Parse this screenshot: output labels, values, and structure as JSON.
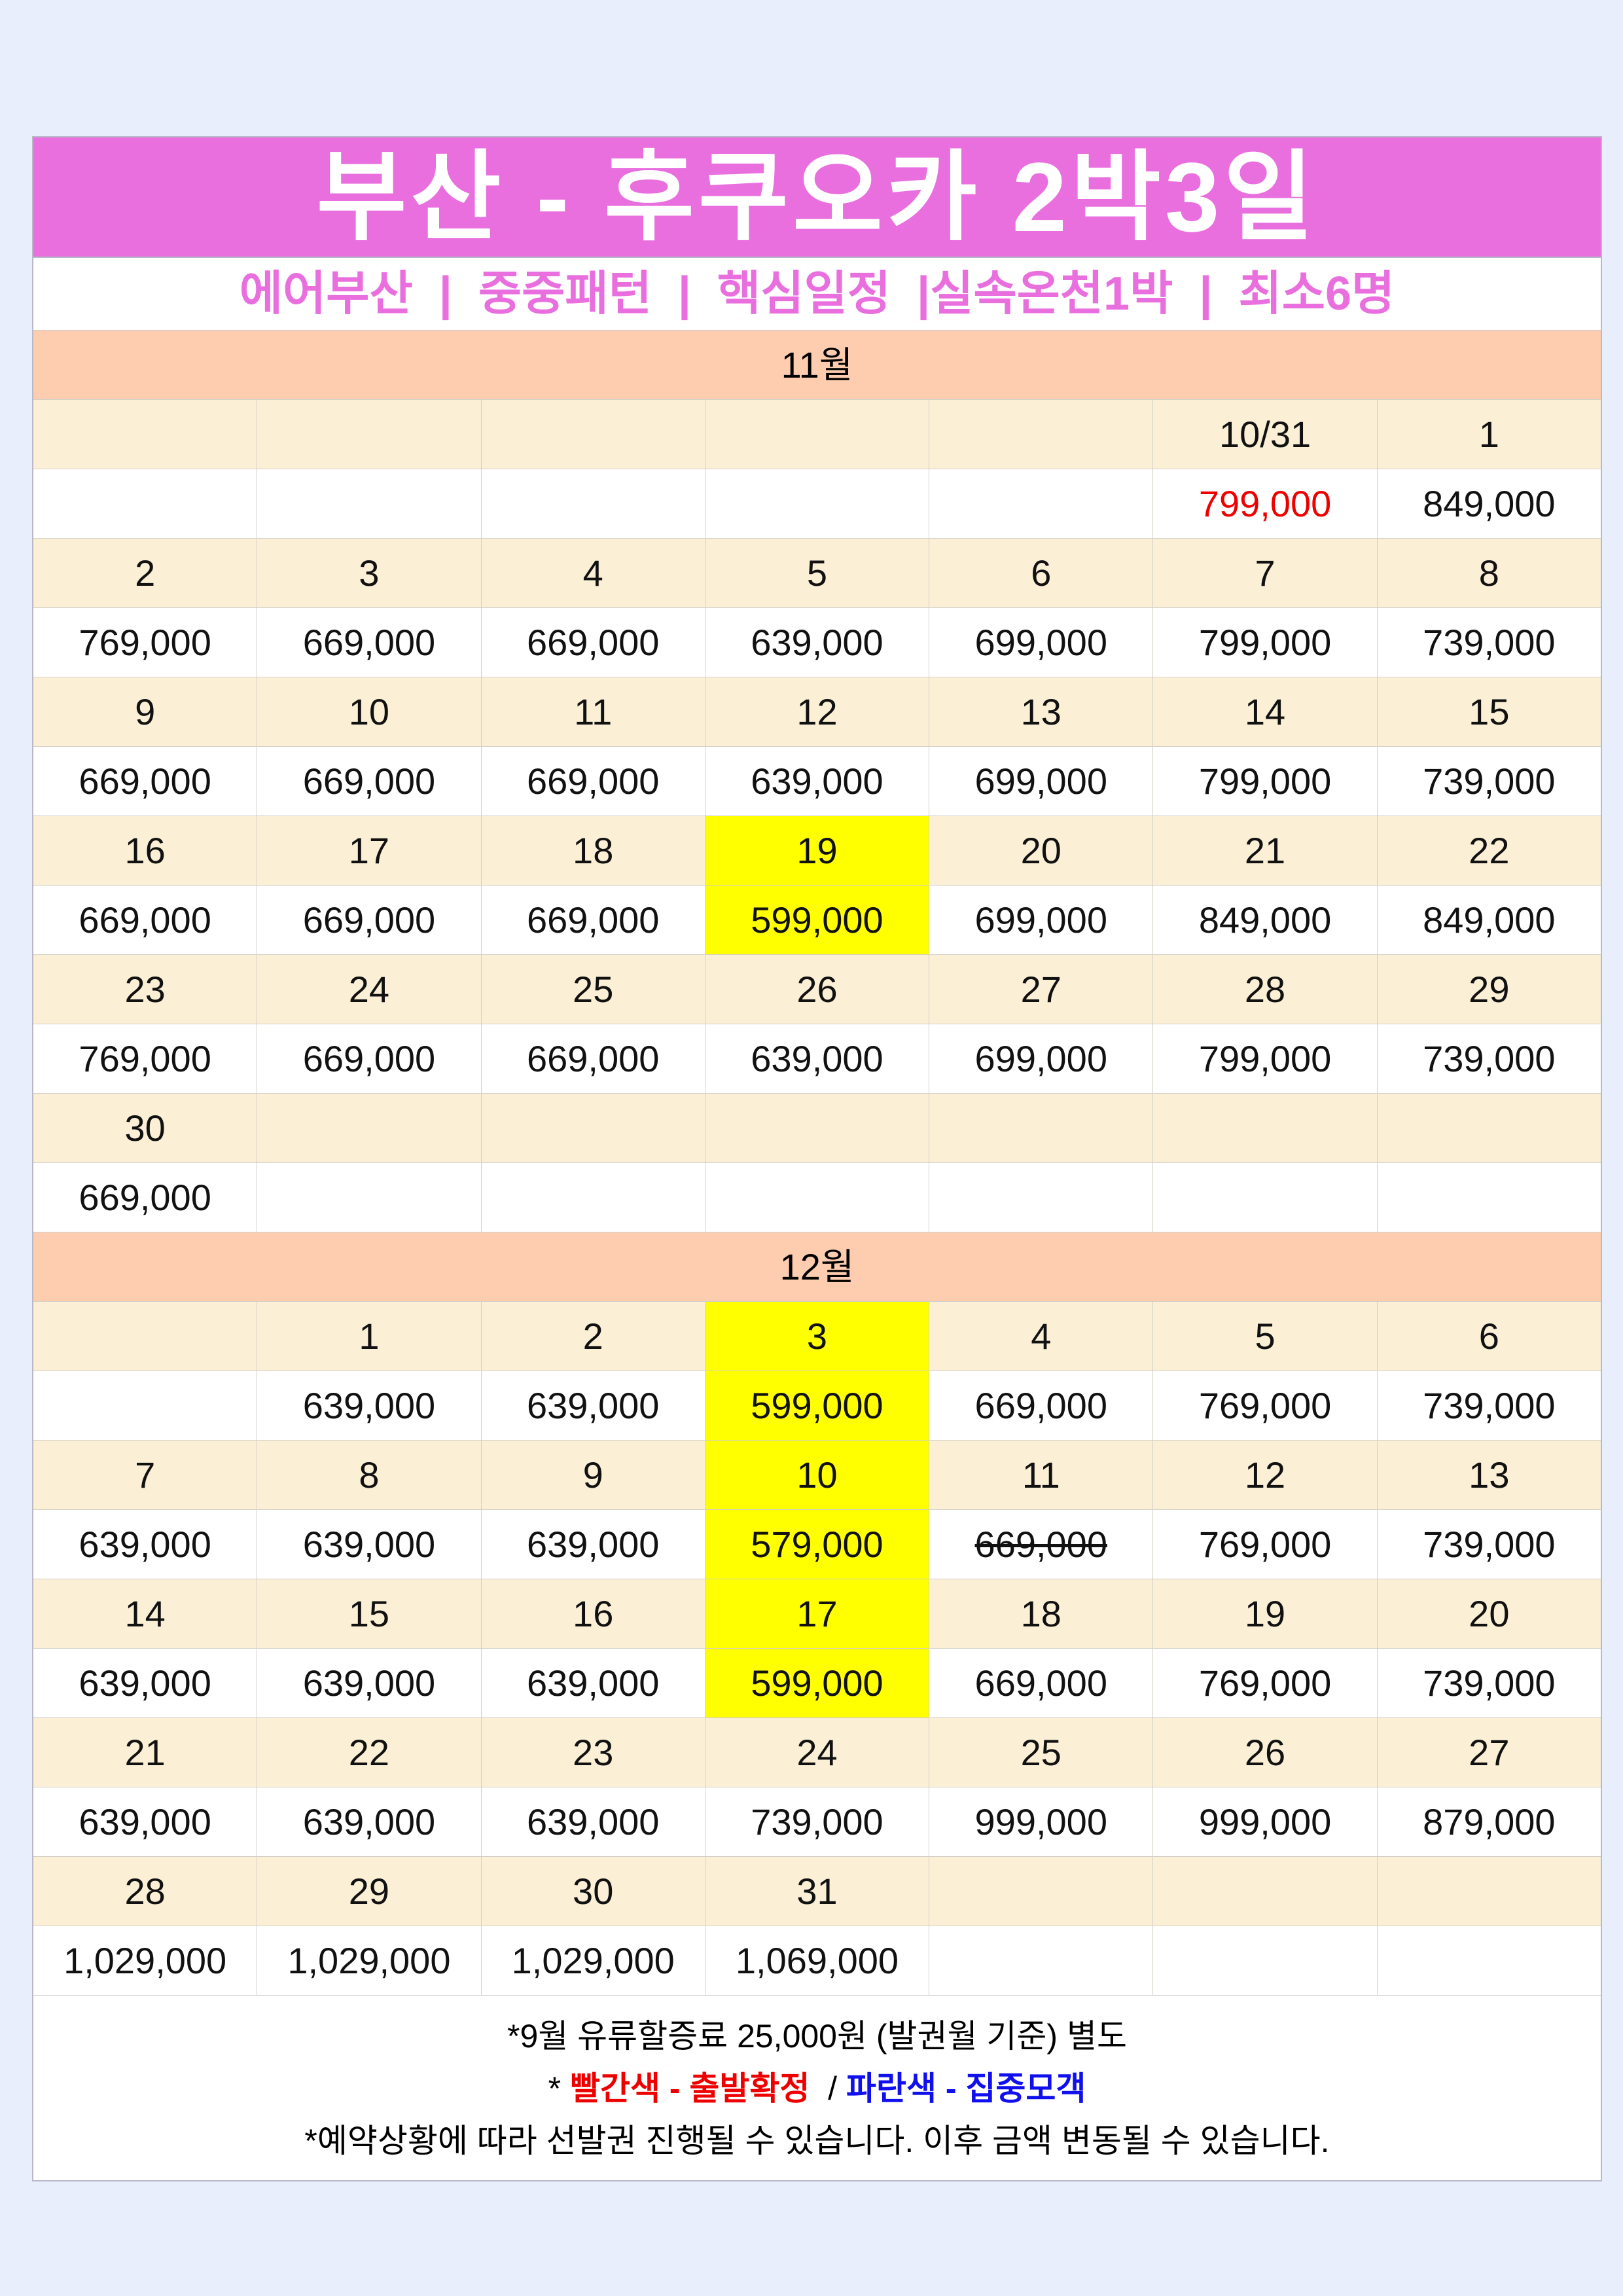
{
  "title": "부산 - 후쿠오카 2박3일",
  "subtitle": "에어부산  |  중중패턴  |  핵심일정  |실속온천1박  |  최소6명",
  "colors": {
    "title_bg": "#e96fdf",
    "month_bg": "#fecdb0",
    "day_row_bg": "#fbefd6",
    "highlight": "#ffff00",
    "confirmed": "#ee0000",
    "gathering": "#1010ee"
  },
  "months": [
    {
      "label": "11월",
      "weeks": [
        [
          {
            "d": ""
          },
          {
            "d": ""
          },
          {
            "d": ""
          },
          {
            "d": ""
          },
          {
            "d": ""
          },
          {
            "d": "10/31",
            "p": "799,000",
            "color": "red"
          },
          {
            "d": "1",
            "p": "849,000"
          }
        ],
        [
          {
            "d": "2",
            "p": "769,000"
          },
          {
            "d": "3",
            "p": "669,000"
          },
          {
            "d": "4",
            "p": "669,000"
          },
          {
            "d": "5",
            "p": "639,000"
          },
          {
            "d": "6",
            "p": "699,000"
          },
          {
            "d": "7",
            "p": "799,000"
          },
          {
            "d": "8",
            "p": "739,000"
          }
        ],
        [
          {
            "d": "9",
            "p": "669,000"
          },
          {
            "d": "10",
            "p": "669,000"
          },
          {
            "d": "11",
            "p": "669,000"
          },
          {
            "d": "12",
            "p": "639,000"
          },
          {
            "d": "13",
            "p": "699,000"
          },
          {
            "d": "14",
            "p": "799,000"
          },
          {
            "d": "15",
            "p": "739,000"
          }
        ],
        [
          {
            "d": "16",
            "p": "669,000"
          },
          {
            "d": "17",
            "p": "669,000"
          },
          {
            "d": "18",
            "p": "669,000"
          },
          {
            "d": "19",
            "p": "599,000",
            "hl": true
          },
          {
            "d": "20",
            "p": "699,000"
          },
          {
            "d": "21",
            "p": "849,000"
          },
          {
            "d": "22",
            "p": "849,000"
          }
        ],
        [
          {
            "d": "23",
            "p": "769,000"
          },
          {
            "d": "24",
            "p": "669,000"
          },
          {
            "d": "25",
            "p": "669,000"
          },
          {
            "d": "26",
            "p": "639,000"
          },
          {
            "d": "27",
            "p": "699,000"
          },
          {
            "d": "28",
            "p": "799,000"
          },
          {
            "d": "29",
            "p": "739,000"
          }
        ],
        [
          {
            "d": "30",
            "p": "669,000"
          },
          {
            "d": ""
          },
          {
            "d": ""
          },
          {
            "d": ""
          },
          {
            "d": ""
          },
          {
            "d": ""
          },
          {
            "d": ""
          }
        ]
      ]
    },
    {
      "label": "12월",
      "weeks": [
        [
          {
            "d": ""
          },
          {
            "d": "1",
            "p": "639,000"
          },
          {
            "d": "2",
            "p": "639,000"
          },
          {
            "d": "3",
            "p": "599,000",
            "hl": true
          },
          {
            "d": "4",
            "p": "669,000"
          },
          {
            "d": "5",
            "p": "769,000"
          },
          {
            "d": "6",
            "p": "739,000"
          }
        ],
        [
          {
            "d": "7",
            "p": "639,000"
          },
          {
            "d": "8",
            "p": "639,000"
          },
          {
            "d": "9",
            "p": "639,000"
          },
          {
            "d": "10",
            "p": "579,000",
            "hl": true
          },
          {
            "d": "11",
            "p": "669,000",
            "strike": true
          },
          {
            "d": "12",
            "p": "769,000"
          },
          {
            "d": "13",
            "p": "739,000"
          }
        ],
        [
          {
            "d": "14",
            "p": "639,000"
          },
          {
            "d": "15",
            "p": "639,000"
          },
          {
            "d": "16",
            "p": "639,000"
          },
          {
            "d": "17",
            "p": "599,000",
            "hl": true
          },
          {
            "d": "18",
            "p": "669,000"
          },
          {
            "d": "19",
            "p": "769,000"
          },
          {
            "d": "20",
            "p": "739,000"
          }
        ],
        [
          {
            "d": "21",
            "p": "639,000"
          },
          {
            "d": "22",
            "p": "639,000"
          },
          {
            "d": "23",
            "p": "639,000"
          },
          {
            "d": "24",
            "p": "739,000"
          },
          {
            "d": "25",
            "p": "999,000"
          },
          {
            "d": "26",
            "p": "999,000"
          },
          {
            "d": "27",
            "p": "879,000"
          }
        ],
        [
          {
            "d": "28",
            "p": "1,029,000"
          },
          {
            "d": "29",
            "p": "1,029,000"
          },
          {
            "d": "30",
            "p": "1,029,000"
          },
          {
            "d": "31",
            "p": "1,069,000"
          },
          {
            "d": ""
          },
          {
            "d": ""
          },
          {
            "d": ""
          }
        ]
      ]
    }
  ],
  "footer": {
    "note1": "*9월 유류할증료 25,000원 (발권월 기준) 별도",
    "legend_prefix": "* ",
    "legend_red": "빨간색 - 출발확정",
    "legend_sep": "  / ",
    "legend_blue": "파란색 - 집중모객",
    "note2": "*예약상황에 따라 선발권 진행될 수 있습니다. 이후 금액 변동될 수 있습니다."
  }
}
